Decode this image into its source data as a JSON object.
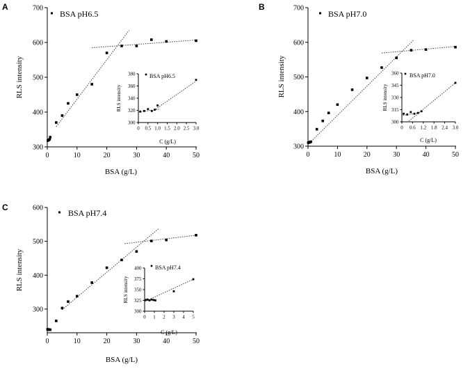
{
  "chart_data": [
    {
      "panel": "A",
      "type": "scatter",
      "legend": "BSA pH6.5",
      "xlabel": "BSA (g/L)",
      "ylabel": "RLS intensity",
      "xlim": [
        0,
        50
      ],
      "ylim": [
        300,
        700
      ],
      "xticks": [
        0,
        10,
        20,
        30,
        40,
        50
      ],
      "yticks": [
        300,
        400,
        500,
        600,
        700
      ],
      "series": [
        {
          "x": [
            0.2,
            0.5,
            0.8,
            1.0,
            3,
            5,
            7,
            10,
            15,
            20,
            25,
            30,
            35,
            40,
            50
          ],
          "y": [
            318,
            320,
            322,
            328,
            370,
            390,
            425,
            450,
            480,
            570,
            590,
            590,
            608,
            603,
            605
          ]
        }
      ],
      "trendlines": [
        {
          "x": [
            3,
            27.5
          ],
          "y": [
            358,
            635
          ]
        },
        {
          "x": [
            15,
            50
          ],
          "y": [
            585,
            607
          ]
        }
      ],
      "inset": {
        "legend": "BSA pH6.5",
        "xlabel": "C (g/L)",
        "ylabel": "RLS intensity",
        "xlim": [
          0,
          3.0
        ],
        "ylim": [
          300,
          380
        ],
        "xticks": [
          0,
          0.5,
          1.0,
          1.5,
          2.0,
          2.5,
          3.0
        ],
        "xticklabels": [
          "0",
          "0.5",
          "1.0",
          "1.5",
          "2.0",
          "2.5",
          "3.0"
        ],
        "yticks": [
          300,
          320,
          340,
          360,
          380
        ],
        "series": [
          {
            "x": [
              0.1,
              0.3,
              0.5,
              0.7,
              0.85,
              1.0,
              3.0
            ],
            "y": [
              318,
              319,
              322,
              319,
              321,
              328,
              370
            ]
          }
        ],
        "trendlines": [
          {
            "x": [
              0,
              1.1
            ],
            "y": [
              317,
              322
            ]
          },
          {
            "x": [
              0.9,
              3.0
            ],
            "y": [
              322,
              368
            ]
          }
        ]
      }
    },
    {
      "panel": "B",
      "type": "scatter",
      "legend": "BSA pH7.0",
      "xlabel": "BSA (g/L)",
      "ylabel": "RLS intensity",
      "xlim": [
        0,
        50
      ],
      "ylim": [
        300,
        700
      ],
      "xticks": [
        0,
        10,
        20,
        30,
        40,
        50
      ],
      "yticks": [
        300,
        400,
        500,
        600,
        700
      ],
      "series": [
        {
          "x": [
            0.1,
            0.3,
            0.5,
            0.7,
            1.0,
            3,
            5,
            7,
            10,
            15,
            20,
            25,
            30,
            35,
            40,
            50
          ],
          "y": [
            310,
            311,
            311,
            312,
            313,
            349,
            373,
            396,
            420,
            463,
            497,
            527,
            555,
            577,
            579,
            586
          ]
        }
      ],
      "trendlines": [
        {
          "x": [
            0,
            36
          ],
          "y": [
            305,
            608
          ]
        },
        {
          "x": [
            25,
            50
          ],
          "y": [
            569,
            588
          ]
        }
      ],
      "inset": {
        "legend": "BSA pH7.0",
        "xlabel": "C (g/L)",
        "ylabel": "RLS intensity",
        "xlim": [
          0,
          3.0
        ],
        "ylim": [
          300,
          360
        ],
        "xticks": [
          0,
          0.6,
          1.2,
          1.8,
          2.4,
          3.0
        ],
        "xticklabels": [
          "0",
          "0.6",
          "1.2",
          "1.8",
          "2.4",
          "3.0"
        ],
        "yticks": [
          300,
          315,
          330,
          345,
          360
        ],
        "yticklabels": [
          "300",
          "315",
          "330",
          "345",
          "360"
        ],
        "series": [
          {
            "x": [
              0.1,
              0.3,
              0.5,
              0.7,
              0.9,
              1.1,
              3.0
            ],
            "y": [
              310,
              309,
              312,
              310,
              311,
              313,
              348
            ]
          }
        ],
        "trendlines": [
          {
            "x": [
              0.05,
              1.0
            ],
            "y": [
              308,
              311
            ]
          },
          {
            "x": [
              0.4,
              3.0
            ],
            "y": [
              301,
              348
            ]
          }
        ]
      }
    },
    {
      "panel": "C",
      "type": "scatter",
      "legend": "BSA pH7.4",
      "xlabel": "BSA (g/L)",
      "ylabel": "RLS intensity",
      "xlim": [
        0,
        50
      ],
      "ylim": [
        230,
        600
      ],
      "xticks": [
        0,
        10,
        20,
        30,
        40,
        50
      ],
      "yticks": [
        300,
        400,
        500,
        600
      ],
      "series": [
        {
          "x": [
            0.1,
            0.3,
            0.5,
            0.7,
            1.0,
            3,
            5,
            7,
            10,
            15,
            20,
            25,
            30,
            35,
            40,
            50
          ],
          "y": [
            240,
            240,
            239,
            239,
            239,
            265,
            303,
            322,
            338,
            378,
            422,
            445,
            470,
            501,
            504,
            518
          ]
        }
      ],
      "trendlines": [
        {
          "x": [
            5,
            37.5
          ],
          "y": [
            298,
            538
          ]
        },
        {
          "x": [
            26,
            50
          ],
          "y": [
            493,
            518
          ]
        }
      ],
      "inset": {
        "legend": "BSA pH7.4",
        "xlabel": "C (g/L)",
        "ylabel": "RLS intensity",
        "xlim": [
          0,
          5
        ],
        "ylim": [
          300,
          400
        ],
        "xticks": [
          0,
          1,
          2,
          3,
          4,
          5
        ],
        "yticks": [
          300,
          325,
          350,
          375,
          400
        ],
        "series": [
          {
            "x": [
              0.1,
              0.3,
              0.5,
              0.7,
              0.9,
              1.1,
              3.0,
              5.0
            ],
            "y": [
              326,
              327,
              325,
              327,
              326,
              325,
              346,
              374
            ]
          }
        ],
        "trendlines": [
          {
            "x": [
              0,
              5
            ],
            "y": [
              322,
              374
            ]
          },
          {
            "x": [
              0,
              1.2
            ],
            "y": [
              325,
              327
            ]
          }
        ]
      }
    }
  ]
}
